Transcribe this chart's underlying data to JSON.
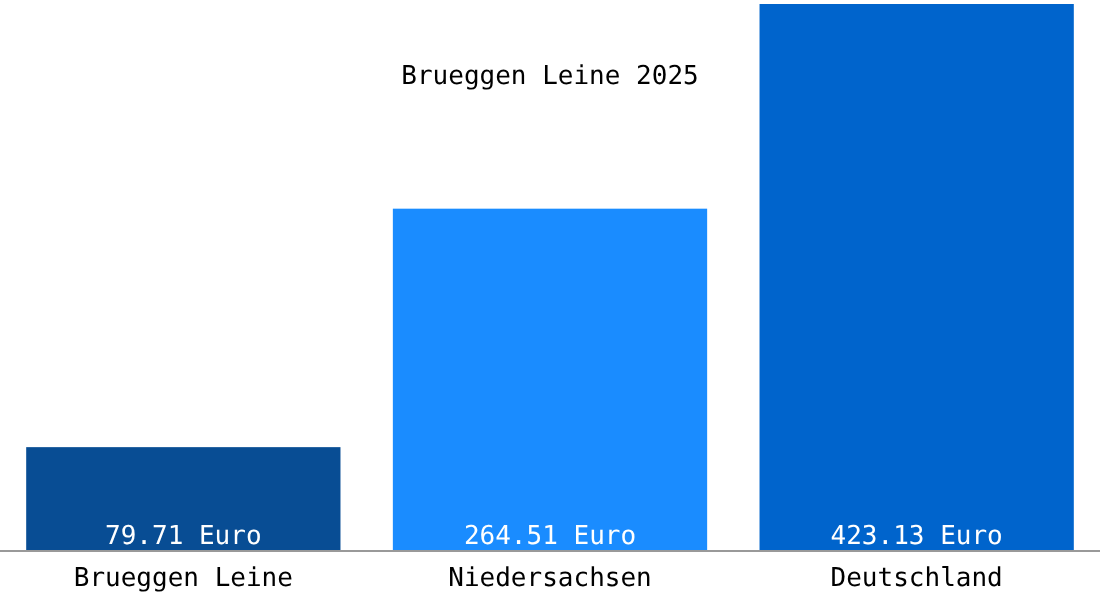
{
  "chart_data": {
    "type": "bar",
    "title": "Brueggen Leine 2025",
    "categories": [
      "Brueggen Leine",
      "Niedersachsen",
      "Deutschland"
    ],
    "values": [
      79.71,
      264.51,
      423.13
    ],
    "colors": [
      "#084d94",
      "#1a8cff",
      "#0064cc"
    ],
    "value_labels": [
      "79.71 Euro",
      "264.51 Euro",
      "423.13 Euro"
    ]
  }
}
